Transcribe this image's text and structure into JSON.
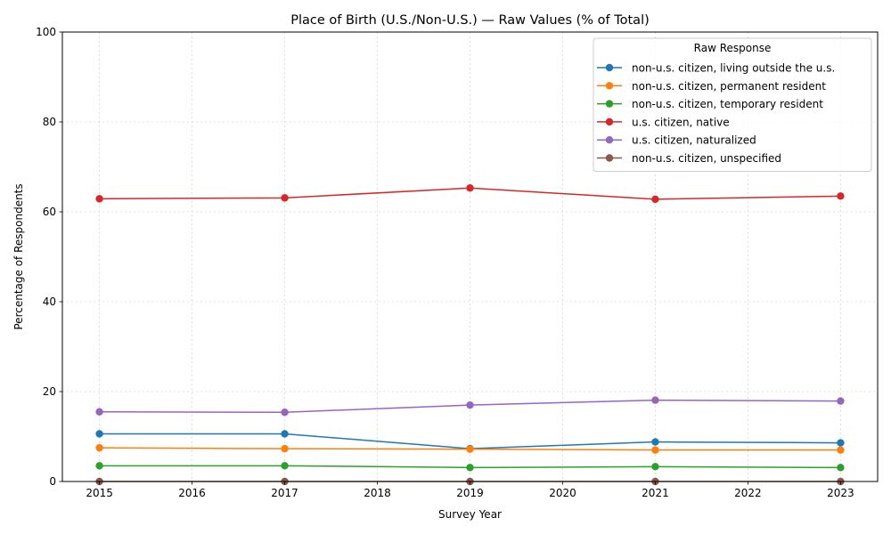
{
  "chart_data": {
    "type": "line",
    "title": "Place of Birth (U.S./Non-U.S.) — Raw Values (% of Total)",
    "xlabel": "Survey Year",
    "ylabel": "Percentage of Respondents",
    "xlim": [
      2014.6,
      2023.4
    ],
    "ylim": [
      0,
      100
    ],
    "x_ticks": [
      2015,
      2016,
      2017,
      2018,
      2019,
      2020,
      2021,
      2022,
      2023
    ],
    "y_ticks": [
      0,
      20,
      40,
      60,
      80,
      100
    ],
    "grid": true,
    "x": [
      2015,
      2017,
      2019,
      2021,
      2023
    ],
    "legend": {
      "title": "Raw Response",
      "placement": "top-right"
    },
    "series": [
      {
        "name": "non-u.s. citizen, living outside the u.s.",
        "color": "#1f77b4",
        "values": [
          10.6,
          10.6,
          7.3,
          8.8,
          8.6
        ]
      },
      {
        "name": "non-u.s. citizen, permanent resident",
        "color": "#ff7f0e",
        "values": [
          7.5,
          7.3,
          7.2,
          7.0,
          7.0
        ]
      },
      {
        "name": "non-u.s. citizen, temporary resident",
        "color": "#2ca02c",
        "values": [
          3.5,
          3.5,
          3.1,
          3.3,
          3.1
        ]
      },
      {
        "name": "u.s. citizen, native",
        "color": "#d62728",
        "values": [
          62.9,
          63.1,
          65.3,
          62.8,
          63.5
        ]
      },
      {
        "name": "u.s. citizen, naturalized",
        "color": "#9467bd",
        "values": [
          15.5,
          15.4,
          17.0,
          18.1,
          17.9
        ]
      },
      {
        "name": "non-u.s. citizen, unspecified",
        "color": "#8c564b",
        "values": [
          0.0,
          0.0,
          0.0,
          0.0,
          0.0
        ]
      }
    ]
  }
}
